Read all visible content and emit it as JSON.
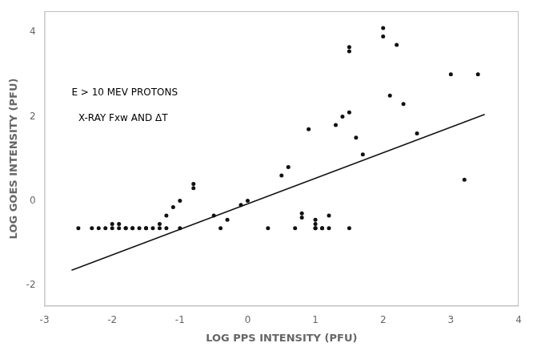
{
  "chart_data": {
    "type": "scatter",
    "xlabel": "LOG PPS INTENSITY (PFU)",
    "ylabel": "LOG GOES INTENSITY (PFU)",
    "series": [
      {
        "type": "scatter",
        "marker": "circle",
        "color": "#111111",
        "x": [
          -2.5,
          -2.3,
          -2.2,
          -2.1,
          -2.0,
          -2.0,
          -1.9,
          -1.9,
          -1.8,
          -1.8,
          -1.7,
          -1.7,
          -1.6,
          -1.5,
          -1.5,
          -1.4,
          -1.3,
          -1.3,
          -1.2,
          -1.2,
          -1.1,
          -1.0,
          -1.0,
          -0.8,
          -0.8,
          -0.5,
          -0.4,
          -0.3,
          -0.1,
          0.0,
          0.3,
          0.5,
          0.6,
          0.7,
          0.8,
          0.8,
          0.9,
          1.0,
          1.0,
          1.0,
          1.0,
          1.1,
          1.1,
          1.2,
          1.2,
          1.3,
          1.4,
          1.5,
          1.5,
          1.5,
          1.5,
          1.6,
          1.7,
          2.0,
          2.0,
          2.1,
          2.2,
          2.3,
          2.5,
          3.0,
          3.2,
          3.4
        ],
        "values": [
          -0.65,
          -0.65,
          -0.65,
          -0.65,
          -0.65,
          -0.55,
          -0.65,
          -0.55,
          -0.65,
          -0.65,
          -0.65,
          -0.65,
          -0.65,
          -0.65,
          -0.65,
          -0.65,
          -0.65,
          -0.55,
          -0.35,
          -0.65,
          -0.15,
          -0.65,
          0.0,
          0.4,
          0.3,
          -0.35,
          -0.65,
          -0.45,
          -0.1,
          0.0,
          -0.65,
          0.6,
          0.8,
          -0.65,
          -0.4,
          -0.3,
          1.7,
          -0.65,
          -0.65,
          -0.55,
          -0.45,
          -0.65,
          -0.65,
          -0.65,
          -0.35,
          1.8,
          2.0,
          3.55,
          3.65,
          2.1,
          -0.65,
          1.5,
          1.1,
          4.1,
          3.9,
          2.5,
          3.7,
          2.3,
          1.6,
          3.0,
          0.5,
          3.0
        ]
      },
      {
        "type": "line",
        "color": "#111111",
        "x": [
          -2.6,
          3.5
        ],
        "values": [
          -1.65,
          2.05
        ]
      }
    ],
    "annotations": [
      {
        "text": "E > 10 MEV PROTONS",
        "x": -2.6,
        "y": 2.5
      },
      {
        "text": "X-RAY Fxw AND ΔT",
        "x": -2.5,
        "y": 1.9
      }
    ],
    "xlim": [
      -3,
      4
    ],
    "ylim": [
      -2.5,
      4.5
    ],
    "xticks": [
      -3,
      -2,
      -1,
      0,
      1,
      2,
      3,
      4
    ],
    "yticks": [
      -2,
      0,
      2,
      4
    ],
    "grid": false
  }
}
